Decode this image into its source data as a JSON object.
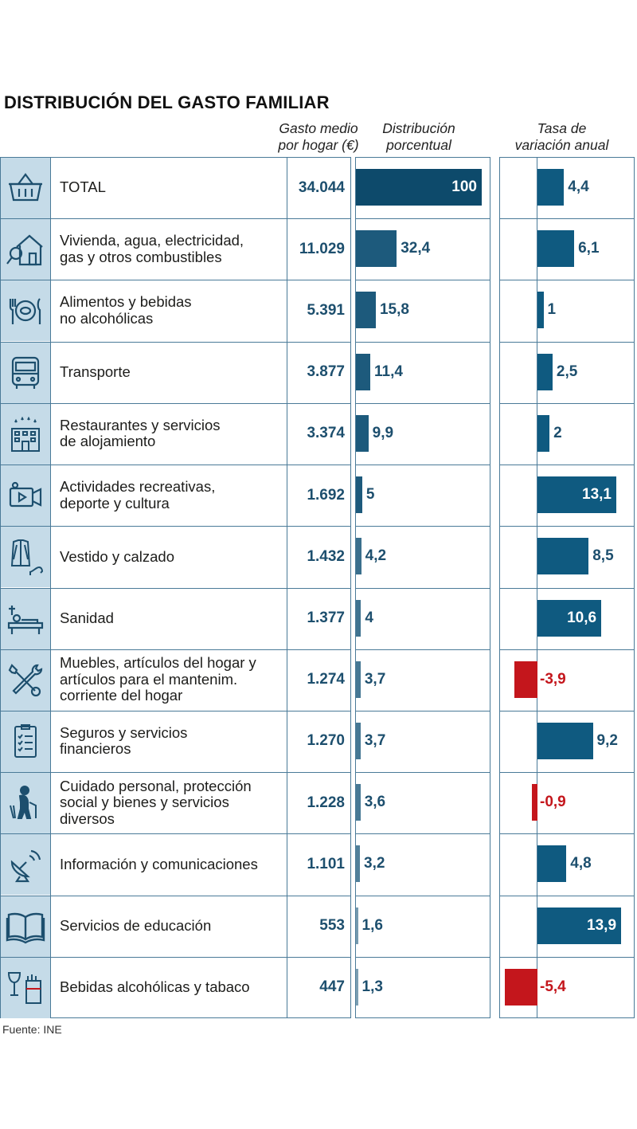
{
  "title": "DISTRIBUCIÓN DEL GASTO FAMILIAR",
  "headers": {
    "gasto": [
      "Gasto medio",
      "por hogar (€)"
    ],
    "distribucion": [
      "Distribución",
      "porcentual"
    ],
    "tasa": [
      "Tasa de",
      "variación anual"
    ]
  },
  "source": "Fuente: INE",
  "colors": {
    "total_bar": "#0d4a6b",
    "dist_bar": "#1d5a7c",
    "tasa_bar": "#0f5a80",
    "negative_bar": "#c4161c",
    "icon_bg": "#c5dbe8",
    "border": "#4a7a98"
  },
  "chart_data": {
    "type": "table",
    "columns": [
      "Gasto medio por hogar (€)",
      "Distribución porcentual",
      "Tasa de variación anual"
    ],
    "rows": [
      {
        "icon": "basket-icon",
        "label": [
          "TOTAL"
        ],
        "gasto": "34.044",
        "dist": 100,
        "dist_label": "100",
        "tasa": 4.4,
        "tasa_label": "4,4"
      },
      {
        "icon": "house-icon",
        "label": [
          "Vivienda, agua, electricidad,",
          "gas y otros combustibles"
        ],
        "gasto": "11.029",
        "dist": 32.4,
        "dist_label": "32,4",
        "tasa": 6.1,
        "tasa_label": "6,1"
      },
      {
        "icon": "plate-cutlery-icon",
        "label": [
          "Alimentos y bebidas",
          "no alcohólicas"
        ],
        "gasto": "5.391",
        "dist": 15.8,
        "dist_label": "15,8",
        "tasa": 1,
        "tasa_label": "1"
      },
      {
        "icon": "bus-icon",
        "label": [
          "Transporte"
        ],
        "gasto": "3.877",
        "dist": 11.4,
        "dist_label": "11,4",
        "tasa": 2.5,
        "tasa_label": "2,5"
      },
      {
        "icon": "hotel-icon",
        "label": [
          "Restaurantes y servicios",
          "de alojamiento"
        ],
        "gasto": "3.374",
        "dist": 9.9,
        "dist_label": "9,9",
        "tasa": 2,
        "tasa_label": "2"
      },
      {
        "icon": "video-camera-icon",
        "label": [
          "Actividades recreativas,",
          "deporte y cultura"
        ],
        "gasto": "1.692",
        "dist": 5,
        "dist_label": "5",
        "tasa": 13.1,
        "tasa_label": "13,1"
      },
      {
        "icon": "clothing-icon",
        "label": [
          "Vestido y calzado"
        ],
        "gasto": "1.432",
        "dist": 4.2,
        "dist_label": "4,2",
        "tasa": 8.5,
        "tasa_label": "8,5"
      },
      {
        "icon": "hospital-bed-icon",
        "label": [
          "Sanidad"
        ],
        "gasto": "1.377",
        "dist": 4,
        "dist_label": "4",
        "tasa": 10.6,
        "tasa_label": "10,6"
      },
      {
        "icon": "tools-icon",
        "label": [
          "Muebles, artículos del hogar y",
          "artículos para el mantenim.",
          "corriente del hogar"
        ],
        "gasto": "1.274",
        "dist": 3.7,
        "dist_label": "3,7",
        "tasa": -3.9,
        "tasa_label": "-3,9"
      },
      {
        "icon": "checklist-icon",
        "label": [
          "Seguros y servicios",
          "financieros"
        ],
        "gasto": "1.270",
        "dist": 3.7,
        "dist_label": "3,7",
        "tasa": 9.2,
        "tasa_label": "9,2"
      },
      {
        "icon": "elderly-person-icon",
        "label": [
          "Cuidado personal, protección",
          "social y bienes y servicios",
          "diversos"
        ],
        "gasto": "1.228",
        "dist": 3.6,
        "dist_label": "3,6",
        "tasa": -0.9,
        "tasa_label": "-0,9"
      },
      {
        "icon": "satellite-dish-icon",
        "label": [
          "Información y comunicaciones"
        ],
        "gasto": "1.101",
        "dist": 3.2,
        "dist_label": "3,2",
        "tasa": 4.8,
        "tasa_label": "4,8"
      },
      {
        "icon": "book-icon",
        "label": [
          "Servicios de educación"
        ],
        "gasto": "553",
        "dist": 1.6,
        "dist_label": "1,6",
        "tasa": 13.9,
        "tasa_label": "13,9"
      },
      {
        "icon": "wine-tobacco-icon",
        "label": [
          "Bebidas alcohólicas y tabaco"
        ],
        "gasto": "447",
        "dist": 1.3,
        "dist_label": "1,3",
        "tasa": -5.4,
        "tasa_label": "-5,4"
      }
    ]
  }
}
